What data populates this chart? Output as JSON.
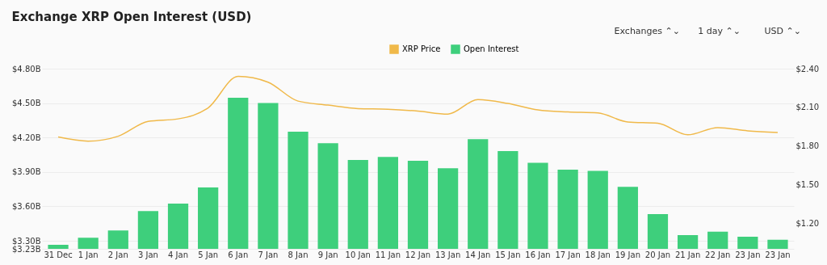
{
  "chart_data": {
    "type": "bar",
    "title": "Exchange XRP Open Interest (USD)",
    "annotations": [
      "Exchanges ⌃⌄",
      "1 day ⌃⌄",
      "USD ⌃⌄"
    ],
    "categories": [
      "31 Dec",
      "1 Jan",
      "2 Jan",
      "3 Jan",
      "4 Jan",
      "5 Jan",
      "6 Jan",
      "7 Jan",
      "8 Jan",
      "9 Jan",
      "10 Jan",
      "11 Jan",
      "12 Jan",
      "13 Jan",
      "14 Jan",
      "15 Jan",
      "16 Jan",
      "17 Jan",
      "18 Jan",
      "19 Jan",
      "20 Jan",
      "21 Jan",
      "22 Jan",
      "23 Jan",
      "23 Jan"
    ],
    "series": [
      {
        "name": "Open Interest",
        "color": "#3ecf7c",
        "values": [
          3.265,
          3.326,
          3.39,
          3.56,
          3.625,
          3.765,
          4.547,
          4.5,
          4.25,
          4.15,
          4.005,
          4.03,
          3.998,
          3.933,
          4.185,
          4.082,
          3.98,
          3.92,
          3.91,
          3.77,
          3.533,
          3.35,
          3.38,
          3.335,
          3.31
        ]
      },
      {
        "name": "XRP Price",
        "type": "line",
        "axis": "y2",
        "color": "#f0b94a",
        "values": [
          1.869,
          1.837,
          1.875,
          1.99,
          2.01,
          2.095,
          2.34,
          2.295,
          2.148,
          2.117,
          2.09,
          2.085,
          2.07,
          2.047,
          2.16,
          2.13,
          2.08,
          2.064,
          2.056,
          1.986,
          1.976,
          1.886,
          1.942,
          1.917,
          1.904
        ]
      }
    ],
    "ylim": [
      3.23,
      4.8
    ],
    "yticks": [
      {
        "value": 3.23,
        "label": "$3.23B"
      },
      {
        "value": 3.3,
        "label": "$3.30B"
      },
      {
        "value": 3.6,
        "label": "$3.60B"
      },
      {
        "value": 3.9,
        "label": "$3.90B"
      },
      {
        "value": 4.2,
        "label": "$4.20B"
      },
      {
        "value": 4.5,
        "label": "$4.50B"
      },
      {
        "value": 4.8,
        "label": "$4.80B"
      }
    ],
    "y2lim": [
      1.0,
      2.4
    ],
    "y2ticks": [
      {
        "value": 1.2,
        "label": "$1.20"
      },
      {
        "value": 1.5,
        "label": "$1.50"
      },
      {
        "value": 1.8,
        "label": "$1.80"
      },
      {
        "value": 2.1,
        "label": "$2.10"
      },
      {
        "value": 2.4,
        "label": "$2.40"
      }
    ],
    "grid": "y",
    "legend": "top",
    "marker": "none",
    "line_style": "solid"
  }
}
